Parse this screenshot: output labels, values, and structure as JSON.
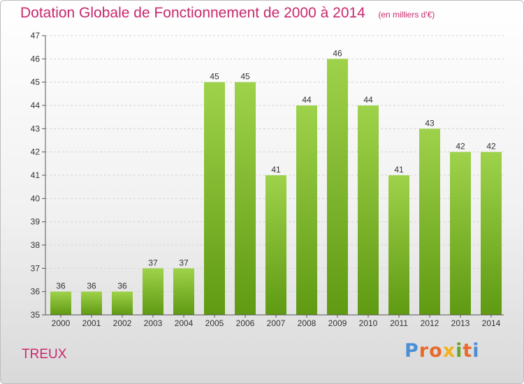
{
  "header": {
    "title": "Dotation Globale de Fonctionnement de 2000 à 2014",
    "unit": "(en milliers d'€)"
  },
  "footer": {
    "commune": "TREUX",
    "brand": "Proxiti"
  },
  "colors": {
    "title": "#c8286d",
    "bar_top": "#9fd24b",
    "bar_bottom": "#5f9a12",
    "axis": "#555555",
    "grid": "#d4d4d4",
    "brand_letters": [
      "#4a8fd6",
      "#e86a2a",
      "#e86a2a",
      "#f2b21c",
      "#6aa22a",
      "#e86a2a",
      "#4a8fd6"
    ]
  },
  "chart_data": {
    "type": "bar",
    "title": "Dotation Globale de Fonctionnement de 2000 à 2014",
    "subtitle": "(en milliers d'€)",
    "xlabel": "",
    "ylabel": "",
    "categories": [
      "2000",
      "2001",
      "2002",
      "2003",
      "2004",
      "2005",
      "2006",
      "2007",
      "2008",
      "2009",
      "2010",
      "2011",
      "2012",
      "2013",
      "2014"
    ],
    "values": [
      36,
      36,
      36,
      37,
      37,
      45,
      45,
      41,
      44,
      46,
      44,
      41,
      43,
      42,
      42
    ],
    "ylim": [
      35,
      47
    ],
    "yticks": [
      35,
      36,
      37,
      38,
      39,
      40,
      41,
      42,
      43,
      44,
      45,
      46,
      47
    ],
    "grid": true,
    "legend": "none",
    "data_labels": true
  }
}
